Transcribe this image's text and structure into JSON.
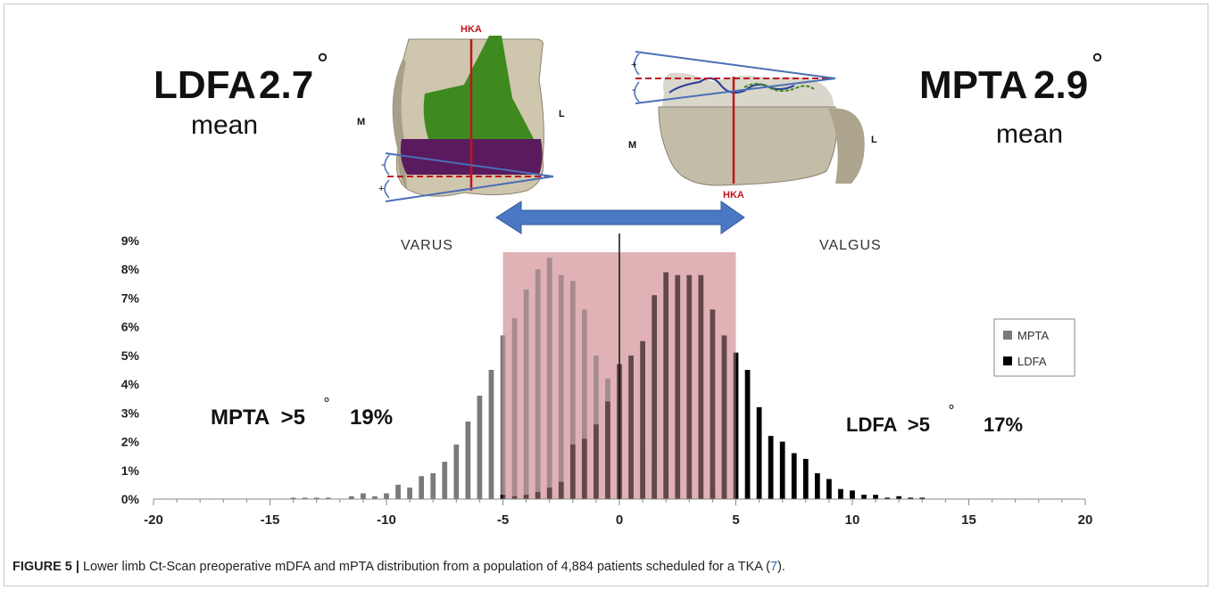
{
  "figure": {
    "ldfa_title": "LDFA",
    "ldfa_mean_value": "2.7",
    "ldfa_mean_label": "mean",
    "mpta_title": "MPTA",
    "mpta_mean_value": "2.9",
    "mpta_mean_label": "mean",
    "degree_symbol": "°",
    "femur_labels": {
      "hka": "HKA",
      "m": "M",
      "l": "L",
      "plus": "+",
      "minus": "-"
    },
    "tibia_labels": {
      "hka": "HKA",
      "m": "M",
      "l": "L",
      "plus": "+",
      "minus": "-"
    },
    "varus_label": "VARUS",
    "valgus_label": "VALGUS",
    "mpta_gt5_label": "MPTA  >5",
    "mpta_gt5_percent": "19%",
    "ldfa_gt5_label": "LDFA  >5",
    "ldfa_gt5_percent": "17%",
    "caption_figure": "FIGURE 5 |",
    "caption_text": " Lower limb Ct-Scan preoperative mDFA and mPTA distribution from a population of 4,884 patients scheduled for a TKA (",
    "caption_ref": "7",
    "caption_end": ")."
  },
  "colors": {
    "mpta": "#7a7a7a",
    "ldfa": "#000000",
    "band": "#d9a0a4",
    "arrow": "#4a78c4",
    "hka_line": "#c0141c",
    "femur_green": "#3e8a1e",
    "femur_purple": "#5a1a5e"
  },
  "chart_data": {
    "type": "bar",
    "xlim": [
      -20,
      20
    ],
    "ylim": [
      0,
      9
    ],
    "x_ticks": [
      "-20",
      "-15",
      "-10",
      "-5",
      "0",
      "5",
      "10",
      "15",
      "20"
    ],
    "y_ticks": [
      "0%",
      "1%",
      "2%",
      "3%",
      "4%",
      "5%",
      "6%",
      "7%",
      "8%",
      "9%"
    ],
    "y_unit": "%",
    "legend_position": "right",
    "highlight_range": [
      -5,
      5
    ],
    "series": [
      {
        "name": "MPTA",
        "x": [
          -14,
          -13.5,
          -13,
          -12.5,
          -12,
          -11.5,
          -11,
          -10.5,
          -10,
          -9.5,
          -9,
          -8.5,
          -8,
          -7.5,
          -7,
          -6.5,
          -6,
          -5.5,
          -5,
          -4.5,
          -4,
          -3.5,
          -3,
          -2.5,
          -2,
          -1.5,
          -1,
          -0.5,
          0,
          0.5,
          1,
          1.5,
          2,
          2.5,
          3,
          3.5,
          4,
          4.5,
          5,
          5.5,
          6,
          6.5,
          7,
          7.5,
          8,
          8.5
        ],
        "values": [
          0.05,
          0.05,
          0.05,
          0.05,
          0.0,
          0.1,
          0.2,
          0.1,
          0.2,
          0.5,
          0.4,
          0.8,
          0.9,
          1.3,
          1.9,
          2.7,
          3.6,
          4.5,
          5.7,
          6.3,
          7.3,
          8.0,
          8.4,
          7.8,
          7.6,
          6.6,
          5.0,
          4.2,
          3.6,
          2.6,
          1.9,
          1.1,
          0.8,
          0.5,
          0.4,
          0.3,
          0.35,
          0.3,
          0.1,
          0.15,
          0.1,
          0.1,
          0.1,
          0.05,
          0.05,
          0.0
        ]
      },
      {
        "name": "LDFA",
        "x": [
          -5,
          -4.5,
          -4,
          -3.5,
          -3,
          -2.5,
          -2,
          -1.5,
          -1,
          -0.5,
          0,
          0.5,
          1,
          1.5,
          2,
          2.5,
          3,
          3.5,
          4,
          4.5,
          5,
          5.5,
          6,
          6.5,
          7,
          7.5,
          8,
          8.5,
          9,
          9.5,
          10,
          10.5,
          11,
          11.5,
          12,
          12.5,
          13
        ],
        "values": [
          0.15,
          0.1,
          0.15,
          0.25,
          0.4,
          0.6,
          1.9,
          2.1,
          2.6,
          3.4,
          4.7,
          5.0,
          5.5,
          7.1,
          7.9,
          7.8,
          7.8,
          7.8,
          6.6,
          5.7,
          5.1,
          4.5,
          3.2,
          2.2,
          2.0,
          1.6,
          1.4,
          0.9,
          0.7,
          0.35,
          0.3,
          0.15,
          0.15,
          0.05,
          0.1,
          0.05,
          0.05
        ]
      }
    ]
  }
}
